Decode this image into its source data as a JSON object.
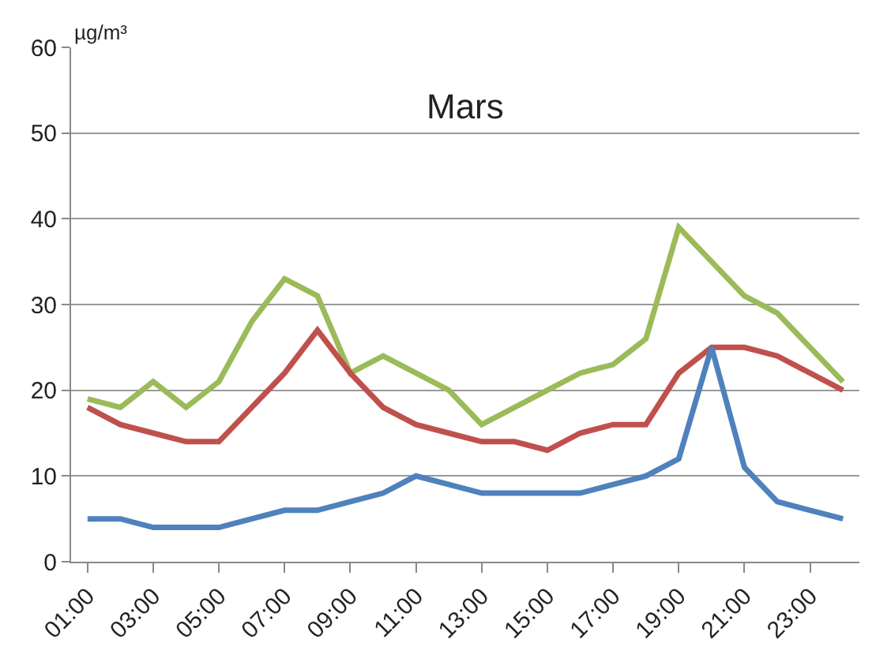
{
  "chart_data": {
    "type": "line",
    "title": "Mars",
    "ylabel": "µg/m³",
    "categories": [
      "01:00",
      null,
      "03:00",
      null,
      "05:00",
      null,
      "07:00",
      null,
      "09:00",
      null,
      "11:00",
      null,
      "13:00",
      null,
      "15:00",
      null,
      "17:00",
      null,
      "19:00",
      null,
      "21:00",
      null,
      "23:00",
      null
    ],
    "series": [
      {
        "color": "#9bbb59",
        "values": [
          19,
          18,
          21,
          18,
          21,
          28,
          33,
          31,
          22,
          24,
          22,
          20,
          16,
          18,
          20,
          22,
          23,
          26,
          39,
          35,
          31,
          29,
          25,
          21
        ]
      },
      {
        "color": "#c0504d",
        "values": [
          18,
          16,
          15,
          14,
          14,
          18,
          22,
          27,
          22,
          18,
          16,
          15,
          14,
          14,
          13,
          15,
          16,
          16,
          22,
          25,
          25,
          24,
          22,
          20
        ]
      },
      {
        "color": "#4f81bd",
        "values": [
          5,
          5,
          4,
          4,
          4,
          5,
          6,
          6,
          7,
          8,
          10,
          9,
          8,
          8,
          8,
          8,
          9,
          10,
          12,
          25,
          11,
          7,
          6,
          5
        ]
      }
    ],
    "ylim": [
      0,
      60
    ],
    "yticks": [
      0,
      10,
      20,
      30,
      40,
      50,
      60
    ],
    "grid": "y",
    "marker": "none",
    "line_style": "solid"
  }
}
